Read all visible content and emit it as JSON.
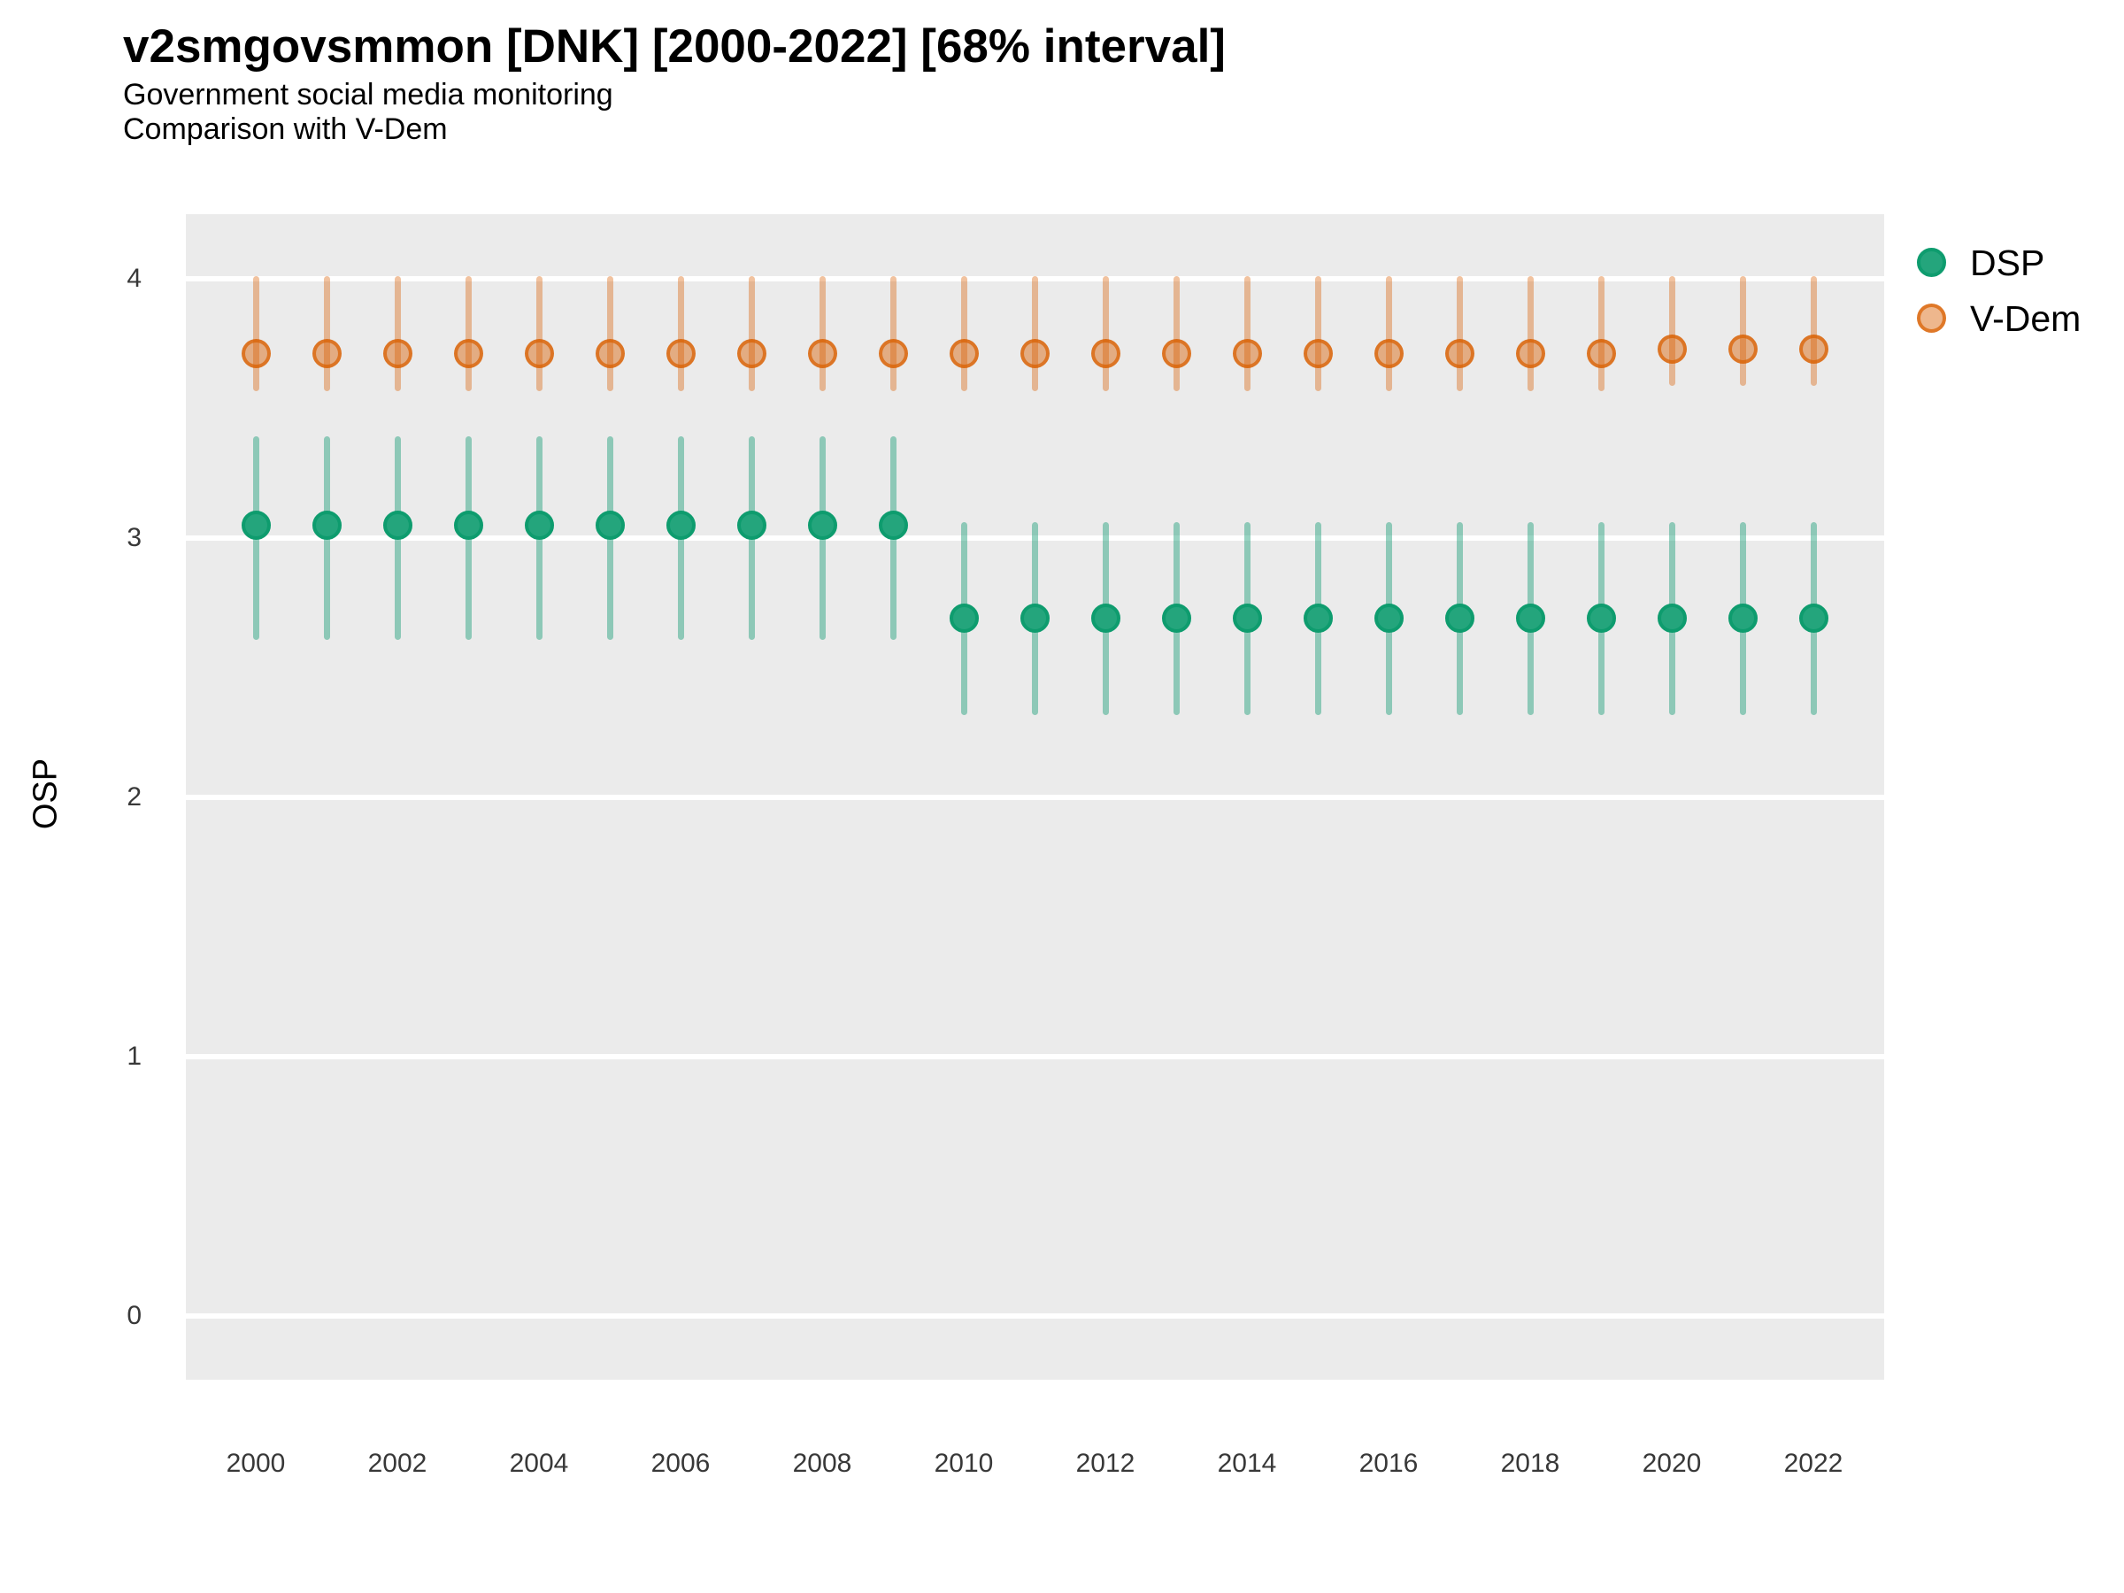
{
  "header": {
    "title": "v2smgovsmmon [DNK] [2000-2022] [68% interval]",
    "subtitle": "Government social media monitoring",
    "subtitle2": "Comparison with V-Dem"
  },
  "chart_data": {
    "type": "pointinterval",
    "title": "v2smgovsmmon [DNK] [2000-2022] [68% interval]",
    "subtitle": "Government social media monitoring",
    "subtitle2": "Comparison with V-Dem",
    "xlabel": "",
    "ylabel": "OSP",
    "interval_level": "68%",
    "ylim": [
      -0.25,
      4.25
    ],
    "xlim": [
      1999,
      2023
    ],
    "yticks": [
      0,
      1,
      2,
      3,
      4
    ],
    "xticks": [
      2000,
      2002,
      2004,
      2006,
      2008,
      2010,
      2012,
      2014,
      2016,
      2018,
      2020,
      2022
    ],
    "grid": "horizontal-major-white-on-gray",
    "panel_bg": "#EBEBEB",
    "gridline_color": "#FFFFFF",
    "axis_text_color": "#383838",
    "legend_position": "right-top",
    "legend": [
      {
        "name": "DSP",
        "color": "#1FA47B"
      },
      {
        "name": "V-Dem",
        "color": "#E8A064"
      }
    ],
    "series": [
      {
        "name": "DSP",
        "point_fill": "#24A57C",
        "point_stroke": "#0E9C6E",
        "bar_color": "rgba(27,158,119,0.45)",
        "points": [
          {
            "year": 2000,
            "est": 3.05,
            "lo": 2.62,
            "hi": 3.38
          },
          {
            "year": 2001,
            "est": 3.05,
            "lo": 2.62,
            "hi": 3.38
          },
          {
            "year": 2002,
            "est": 3.05,
            "lo": 2.62,
            "hi": 3.38
          },
          {
            "year": 2003,
            "est": 3.05,
            "lo": 2.62,
            "hi": 3.38
          },
          {
            "year": 2004,
            "est": 3.05,
            "lo": 2.62,
            "hi": 3.38
          },
          {
            "year": 2005,
            "est": 3.05,
            "lo": 2.62,
            "hi": 3.38
          },
          {
            "year": 2006,
            "est": 3.05,
            "lo": 2.62,
            "hi": 3.38
          },
          {
            "year": 2007,
            "est": 3.05,
            "lo": 2.62,
            "hi": 3.38
          },
          {
            "year": 2008,
            "est": 3.05,
            "lo": 2.62,
            "hi": 3.38
          },
          {
            "year": 2009,
            "est": 3.05,
            "lo": 2.62,
            "hi": 3.38
          },
          {
            "year": 2010,
            "est": 2.69,
            "lo": 2.33,
            "hi": 3.05
          },
          {
            "year": 2011,
            "est": 2.69,
            "lo": 2.33,
            "hi": 3.05
          },
          {
            "year": 2012,
            "est": 2.69,
            "lo": 2.33,
            "hi": 3.05
          },
          {
            "year": 2013,
            "est": 2.69,
            "lo": 2.33,
            "hi": 3.05
          },
          {
            "year": 2014,
            "est": 2.69,
            "lo": 2.33,
            "hi": 3.05
          },
          {
            "year": 2015,
            "est": 2.69,
            "lo": 2.33,
            "hi": 3.05
          },
          {
            "year": 2016,
            "est": 2.69,
            "lo": 2.33,
            "hi": 3.05
          },
          {
            "year": 2017,
            "est": 2.69,
            "lo": 2.33,
            "hi": 3.05
          },
          {
            "year": 2018,
            "est": 2.69,
            "lo": 2.33,
            "hi": 3.05
          },
          {
            "year": 2019,
            "est": 2.69,
            "lo": 2.33,
            "hi": 3.05
          },
          {
            "year": 2020,
            "est": 2.69,
            "lo": 2.33,
            "hi": 3.05
          },
          {
            "year": 2021,
            "est": 2.69,
            "lo": 2.33,
            "hi": 3.05
          },
          {
            "year": 2022,
            "est": 2.69,
            "lo": 2.33,
            "hi": 3.05
          }
        ]
      },
      {
        "name": "V-Dem",
        "point_fill": "rgba(217,95,2,0.45)",
        "point_stroke": "rgba(217,95,2,0.72)",
        "bar_color": "rgba(217,95,2,0.38)",
        "points": [
          {
            "year": 2000,
            "est": 3.71,
            "lo": 3.58,
            "hi": 4.0
          },
          {
            "year": 2001,
            "est": 3.71,
            "lo": 3.58,
            "hi": 4.0
          },
          {
            "year": 2002,
            "est": 3.71,
            "lo": 3.58,
            "hi": 4.0
          },
          {
            "year": 2003,
            "est": 3.71,
            "lo": 3.58,
            "hi": 4.0
          },
          {
            "year": 2004,
            "est": 3.71,
            "lo": 3.58,
            "hi": 4.0
          },
          {
            "year": 2005,
            "est": 3.71,
            "lo": 3.58,
            "hi": 4.0
          },
          {
            "year": 2006,
            "est": 3.71,
            "lo": 3.58,
            "hi": 4.0
          },
          {
            "year": 2007,
            "est": 3.71,
            "lo": 3.58,
            "hi": 4.0
          },
          {
            "year": 2008,
            "est": 3.71,
            "lo": 3.58,
            "hi": 4.0
          },
          {
            "year": 2009,
            "est": 3.71,
            "lo": 3.58,
            "hi": 4.0
          },
          {
            "year": 2010,
            "est": 3.71,
            "lo": 3.58,
            "hi": 4.0
          },
          {
            "year": 2011,
            "est": 3.71,
            "lo": 3.58,
            "hi": 4.0
          },
          {
            "year": 2012,
            "est": 3.71,
            "lo": 3.58,
            "hi": 4.0
          },
          {
            "year": 2013,
            "est": 3.71,
            "lo": 3.58,
            "hi": 4.0
          },
          {
            "year": 2014,
            "est": 3.71,
            "lo": 3.58,
            "hi": 4.0
          },
          {
            "year": 2015,
            "est": 3.71,
            "lo": 3.58,
            "hi": 4.0
          },
          {
            "year": 2016,
            "est": 3.71,
            "lo": 3.58,
            "hi": 4.0
          },
          {
            "year": 2017,
            "est": 3.71,
            "lo": 3.58,
            "hi": 4.0
          },
          {
            "year": 2018,
            "est": 3.71,
            "lo": 3.58,
            "hi": 4.0
          },
          {
            "year": 2019,
            "est": 3.71,
            "lo": 3.58,
            "hi": 4.0
          },
          {
            "year": 2020,
            "est": 3.73,
            "lo": 3.6,
            "hi": 4.0
          },
          {
            "year": 2021,
            "est": 3.73,
            "lo": 3.6,
            "hi": 4.0
          },
          {
            "year": 2022,
            "est": 3.73,
            "lo": 3.6,
            "hi": 4.0
          }
        ]
      }
    ]
  }
}
